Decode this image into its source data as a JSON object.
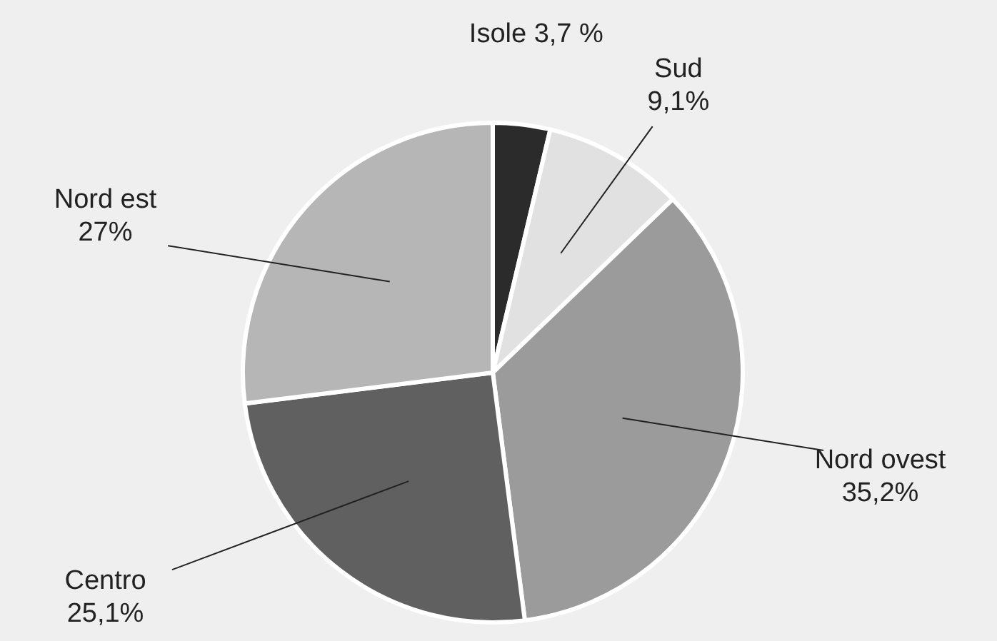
{
  "chart_data": {
    "type": "pie",
    "categories": [
      "Isole",
      "Sud",
      "Nord ovest",
      "Centro",
      "Nord est"
    ],
    "values": [
      3.7,
      9.1,
      35.2,
      25.1,
      27
    ],
    "value_labels": [
      "3,7 %",
      "9,1%",
      "35,2%",
      "25,1%",
      "27%"
    ],
    "colors": [
      "#2b2b2b",
      "#e1e1e1",
      "#9b9b9b",
      "#606060",
      "#b6b6b6"
    ]
  }
}
